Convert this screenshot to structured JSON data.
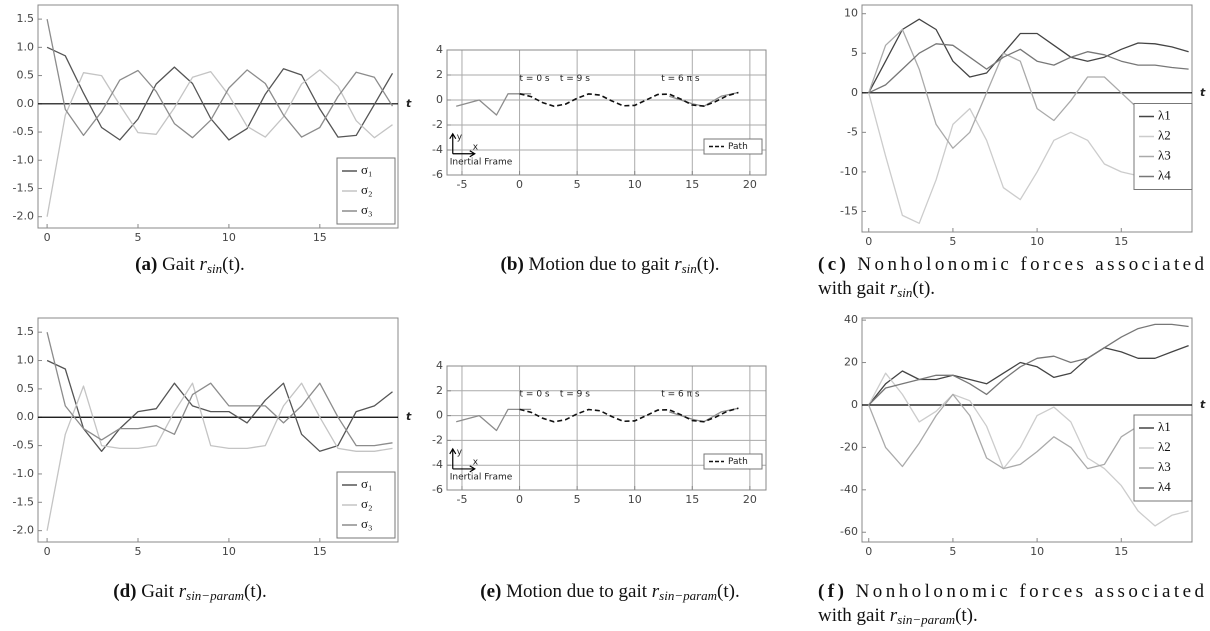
{
  "chart_data": [
    {
      "type": "line",
      "x_label": "t",
      "x": [
        0,
        1,
        2,
        3,
        4,
        5,
        6,
        7,
        8,
        9,
        10,
        11,
        12,
        13,
        14,
        15,
        16,
        17,
        18,
        19
      ],
      "xlim": [
        -0.5,
        19.3
      ],
      "xticks": [
        0,
        5,
        10,
        15
      ],
      "ylim": [
        -2.2,
        1.75
      ],
      "yticks": [
        {
          "value": -2,
          "label": "-2.0"
        },
        -1.5,
        {
          "value": -1,
          "label": "-1.0"
        },
        -0.5,
        {
          "value": 0,
          "label": "0.0"
        },
        0.5,
        {
          "value": 1,
          "label": "1.0"
        },
        1.5
      ],
      "zero_axis": true,
      "legend": "lower right",
      "series": [
        {
          "name": "σ₁",
          "color": "#555555",
          "values": [
            1.0,
            0.85,
            0.19,
            -0.42,
            -0.64,
            -0.27,
            0.35,
            0.65,
            0.36,
            -0.26,
            -0.64,
            -0.44,
            0.17,
            0.62,
            0.51,
            -0.09,
            -0.59,
            -0.56,
            -0.01,
            0.54
          ]
        },
        {
          "name": "σ₂",
          "color": "#c4c4c4",
          "values": [
            -2.0,
            -0.2,
            0.55,
            0.5,
            -0.02,
            -0.51,
            -0.54,
            -0.07,
            0.47,
            0.57,
            0.15,
            -0.4,
            -0.59,
            -0.23,
            0.35,
            0.6,
            0.31,
            -0.3,
            -0.6,
            -0.37
          ]
        },
        {
          "name": "σ₃",
          "color": "#8c8c8c",
          "values": [
            1.5,
            -0.1,
            -0.56,
            -0.14,
            0.42,
            0.59,
            0.22,
            -0.35,
            -0.6,
            -0.29,
            0.28,
            0.6,
            0.36,
            -0.2,
            -0.59,
            -0.42,
            0.13,
            0.56,
            0.47,
            -0.04
          ]
        }
      ],
      "caption": {
        "label": "(a)",
        "text": "Gait",
        "symbol": "r",
        "subscript": "sin",
        "suffix": "(t)."
      }
    },
    {
      "type": "line",
      "xlim": [
        -6.3,
        21.4
      ],
      "xticks": [
        -5,
        0,
        5,
        10,
        15,
        20
      ],
      "ylim": [
        -6,
        4
      ],
      "yticks": [
        -6,
        -4,
        -2,
        0,
        2,
        4
      ],
      "grid": true,
      "legend": "lower right",
      "annotations": [
        "t = 0 s",
        "t = 9 s",
        "t = 6 π s"
      ],
      "inertial_frame": {
        "label": "Inertial Frame",
        "x_label": "x",
        "y_label": "y"
      },
      "series": [
        {
          "color": "#8c8c8c",
          "x": [
            -5.5,
            -3.5,
            -2,
            -1,
            0,
            1
          ],
          "values": [
            -0.5,
            0,
            -1.2,
            0.5,
            0.5,
            0.5
          ]
        },
        {
          "color": "#8c8c8c",
          "x": [
            13,
            15,
            16,
            17.5,
            19
          ],
          "values": [
            0.3,
            -0.3,
            -0.5,
            0.3,
            0.6
          ]
        },
        {
          "name": "Path",
          "color": "#111111",
          "dash": true,
          "x": [
            0,
            1,
            2,
            3,
            4,
            5,
            6,
            7,
            8,
            9,
            10,
            11,
            12,
            13,
            14,
            15,
            16,
            17,
            18,
            19
          ],
          "values": [
            0.5,
            0.27,
            -0.21,
            -0.5,
            -0.33,
            0.14,
            0.49,
            0.39,
            -0.07,
            -0.46,
            -0.43,
            0,
            0.44,
            0.47,
            0.07,
            -0.4,
            -0.49,
            -0.14,
            0.33,
            0.6
          ]
        }
      ],
      "caption": {
        "label": "(b)",
        "text": "Motion due to gait",
        "symbol": "r",
        "subscript": "sin",
        "suffix": "(t)."
      }
    },
    {
      "type": "line",
      "x_label": "t",
      "x": [
        0,
        1,
        2,
        3,
        4,
        5,
        6,
        7,
        8,
        9,
        10,
        11,
        12,
        13,
        14,
        15,
        16,
        17,
        18,
        19
      ],
      "xlim": [
        -0.4,
        19.2
      ],
      "xticks": [
        0,
        5,
        10,
        15
      ],
      "ylim": [
        -17.6,
        11.1
      ],
      "yticks": [
        -15,
        -10,
        -5,
        0,
        5,
        10
      ],
      "zero_axis": true,
      "legend": "right",
      "series": [
        {
          "name": "λ1",
          "color": "#444444",
          "values": [
            0,
            4,
            8,
            9.3,
            8,
            4,
            2,
            2.5,
            5,
            7.5,
            7.5,
            6,
            4.5,
            4,
            4.5,
            5.5,
            6.3,
            6.2,
            5.8,
            5.2
          ]
        },
        {
          "name": "λ2",
          "color": "#cccccc",
          "values": [
            0,
            -8,
            -15.5,
            -16.5,
            -11,
            -4,
            -2,
            -6,
            -12,
            -13.5,
            -10,
            -6,
            -5,
            -6,
            -9,
            -10,
            -10.5,
            -8,
            -8,
            -8
          ]
        },
        {
          "name": "λ3",
          "color": "#aaaaaa",
          "values": [
            0,
            6,
            8,
            3,
            -4,
            -7,
            -5,
            0,
            5,
            4,
            -2,
            -3.5,
            -1,
            2,
            2,
            0,
            -2,
            -3,
            -2.5,
            -3
          ]
        },
        {
          "name": "λ4",
          "color": "#777777",
          "values": [
            0,
            1,
            3,
            5,
            6.2,
            6,
            4.5,
            3,
            4.5,
            5.5,
            4,
            3.5,
            4.5,
            5.2,
            4.8,
            4,
            3.5,
            3.5,
            3.2,
            3
          ]
        }
      ],
      "caption": {
        "label": "(c)",
        "text": [
          "Nonholonomic forces associated",
          "with gait"
        ],
        "symbol": "r",
        "subscript": "sin",
        "suffix": "(t)."
      }
    },
    {
      "type": "line",
      "x_label": "t",
      "x": [
        0,
        1,
        2,
        3,
        4,
        5,
        6,
        7,
        8,
        9,
        10,
        11,
        12,
        13,
        14,
        15,
        16,
        17,
        18,
        19
      ],
      "xlim": [
        -0.5,
        19.3
      ],
      "xticks": [
        0,
        5,
        10,
        15
      ],
      "ylim": [
        -2.2,
        1.75
      ],
      "yticks": [
        {
          "value": -2,
          "label": "-2.0"
        },
        -1.5,
        {
          "value": -1,
          "label": "-1.0"
        },
        -0.5,
        {
          "value": 0,
          "label": "0.0"
        },
        0.5,
        {
          "value": 1,
          "label": "1.0"
        },
        1.5
      ],
      "zero_axis": true,
      "legend": "lower right",
      "series": [
        {
          "name": "σ₁",
          "color": "#555555",
          "values": [
            1.0,
            0.85,
            -0.2,
            -0.6,
            -0.2,
            0.1,
            0.15,
            0.6,
            0.2,
            0.1,
            0.1,
            -0.1,
            0.3,
            0.6,
            -0.3,
            -0.6,
            -0.5,
            0.1,
            0.2,
            0.45
          ]
        },
        {
          "name": "σ₂",
          "color": "#c4c4c4",
          "values": [
            -2.0,
            -0.3,
            0.55,
            -0.5,
            -0.55,
            -0.55,
            -0.5,
            0.1,
            0.6,
            -0.5,
            -0.55,
            -0.55,
            -0.5,
            0.2,
            0.6,
            0,
            -0.55,
            -0.6,
            -0.6,
            -0.55
          ]
        },
        {
          "name": "σ₃",
          "color": "#8c8c8c",
          "values": [
            1.5,
            0.2,
            -0.2,
            -0.4,
            -0.2,
            -0.2,
            -0.15,
            -0.3,
            0.4,
            0.6,
            0.2,
            0.2,
            0.2,
            -0.1,
            0.2,
            0.6,
            0,
            -0.5,
            -0.5,
            -0.45
          ]
        }
      ],
      "caption": {
        "label": "(d)",
        "text": "Gait",
        "symbol": "r",
        "subscript": "sin−param",
        "suffix": "(t)."
      }
    },
    {
      "type": "line",
      "xlim": [
        -6.3,
        21.4
      ],
      "xticks": [
        -5,
        0,
        5,
        10,
        15,
        20
      ],
      "ylim": [
        -6,
        4
      ],
      "yticks": [
        -6,
        -4,
        -2,
        0,
        2,
        4
      ],
      "grid": true,
      "legend": "lower right",
      "annotations": [
        "t = 0 s",
        "t = 9 s",
        "t = 6 π s"
      ],
      "inertial_frame": {
        "label": "Inertial Frame",
        "x_label": "x",
        "y_label": "y"
      },
      "series": [
        {
          "color": "#8c8c8c",
          "x": [
            -5.5,
            -3.5,
            -2,
            -1,
            0,
            1
          ],
          "values": [
            -0.5,
            0,
            -1.2,
            0.5,
            0.5,
            0.5
          ]
        },
        {
          "color": "#8c8c8c",
          "x": [
            13,
            15,
            16,
            17.5,
            19
          ],
          "values": [
            0.3,
            -0.3,
            -0.5,
            0.3,
            0.6
          ]
        },
        {
          "name": "Path",
          "color": "#111111",
          "dash": true,
          "x": [
            0,
            1,
            2,
            3,
            4,
            5,
            6,
            7,
            8,
            9,
            10,
            11,
            12,
            13,
            14,
            15,
            16,
            17,
            18,
            19
          ],
          "values": [
            0.5,
            0.27,
            -0.21,
            -0.5,
            -0.33,
            0.14,
            0.49,
            0.39,
            -0.07,
            -0.46,
            -0.43,
            0,
            0.44,
            0.47,
            0.07,
            -0.4,
            -0.49,
            -0.14,
            0.33,
            0.6
          ]
        }
      ],
      "caption": {
        "label": "(e)",
        "text": "Motion due to gait",
        "symbol": "r",
        "subscript": "sin−param",
        "suffix": "(t)."
      }
    },
    {
      "type": "line",
      "x_label": "t",
      "x": [
        0,
        1,
        2,
        3,
        4,
        5,
        6,
        7,
        8,
        9,
        10,
        11,
        12,
        13,
        14,
        15,
        16,
        17,
        18,
        19
      ],
      "xlim": [
        -0.4,
        19.2
      ],
      "xticks": [
        0,
        5,
        10,
        15
      ],
      "ylim": [
        -64.6,
        41
      ],
      "yticks": [
        -60,
        -40,
        -20,
        0,
        20,
        40
      ],
      "zero_axis": true,
      "legend": "right",
      "series": [
        {
          "name": "λ1",
          "color": "#444444",
          "values": [
            0,
            10,
            16,
            12,
            12,
            14,
            12,
            10,
            15,
            20,
            18,
            13,
            15,
            22,
            27,
            25,
            22,
            22,
            25,
            28
          ]
        },
        {
          "name": "λ2",
          "color": "#cccccc",
          "values": [
            0,
            15,
            5,
            -8,
            -3,
            5,
            2,
            -10,
            -30,
            -20,
            -5,
            -1,
            -8,
            -25,
            -30,
            -38,
            -50,
            -57,
            -52,
            -50
          ]
        },
        {
          "name": "λ3",
          "color": "#aaaaaa",
          "values": [
            0,
            -20,
            -29,
            -18,
            -5,
            5,
            -5,
            -25,
            -30,
            -28,
            -22,
            -15,
            -20,
            -30,
            -28,
            -15,
            -10,
            -15,
            -25,
            -30
          ]
        },
        {
          "name": "λ4",
          "color": "#777777",
          "values": [
            0,
            8,
            10,
            12,
            14,
            14,
            10,
            5,
            12,
            18,
            22,
            23,
            20,
            22,
            27,
            32,
            36,
            38,
            38,
            37
          ]
        }
      ],
      "caption": {
        "label": "(f)",
        "text": [
          "Nonholonomic forces associated",
          "with gait"
        ],
        "symbol": "r",
        "subscript": "sin−param",
        "suffix": "(t)."
      }
    }
  ]
}
